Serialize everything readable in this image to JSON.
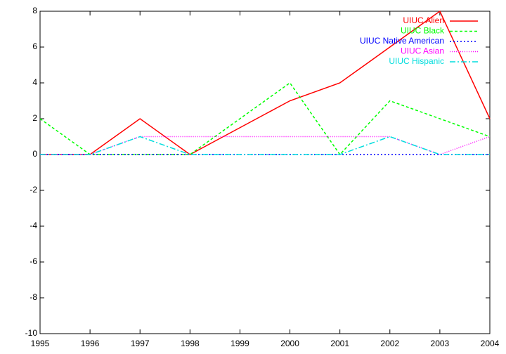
{
  "chart_data": {
    "type": "line",
    "x": [
      1995,
      1996,
      1997,
      1998,
      1999,
      2000,
      2001,
      2002,
      2003,
      2004
    ],
    "series": [
      {
        "name": "UIUC Alien",
        "color": "#ff0000",
        "dash": "none",
        "values": [
          0,
          0,
          2,
          0,
          1.5,
          3,
          4,
          6,
          8,
          2
        ]
      },
      {
        "name": "UIUC Black",
        "color": "#00ff00",
        "dash": "4,3",
        "values": [
          2,
          0,
          0,
          0,
          2,
          4,
          0,
          3,
          2,
          1
        ]
      },
      {
        "name": "UIUC Native American",
        "color": "#0000ff",
        "dash": "2,3",
        "values": [
          0,
          0,
          0,
          0,
          0,
          0,
          0,
          0,
          0,
          0
        ]
      },
      {
        "name": "UIUC Asian",
        "color": "#ff00ff",
        "dash": "1,2",
        "values": [
          0,
          0,
          1,
          1,
          1,
          1,
          1,
          1,
          0,
          1
        ]
      },
      {
        "name": "UIUC Hispanic",
        "color": "#00dddd",
        "dash": "8,3,2,3",
        "values": [
          0,
          0,
          1,
          0,
          0,
          0,
          0,
          1,
          0,
          0
        ]
      }
    ],
    "xlim": [
      1995,
      2004
    ],
    "xticks": [
      1995,
      1996,
      1997,
      1998,
      1999,
      2000,
      2001,
      2002,
      2003,
      2004
    ],
    "ylim": [
      -10,
      8
    ],
    "yticks": [
      -10,
      -8,
      -6,
      -4,
      -2,
      0,
      2,
      4,
      6,
      8
    ],
    "legend": "top-right"
  }
}
